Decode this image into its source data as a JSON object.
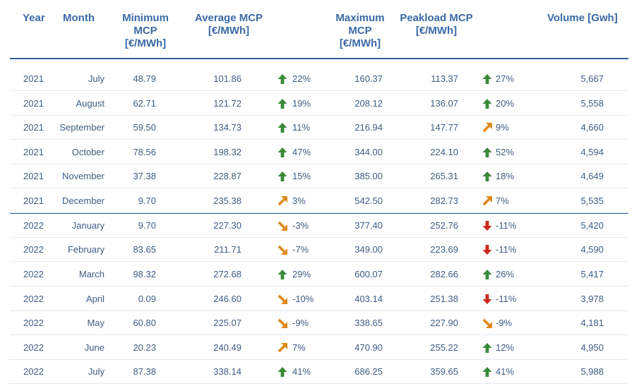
{
  "header": {
    "year": "Year",
    "month": "Month",
    "min_mcp": [
      "Minimum",
      "MCP",
      "[€/MWh]"
    ],
    "avg_mcp": [
      "Average MCP",
      "[€/MWh]"
    ],
    "max_mcp": [
      "Maximum",
      "MCP",
      "[€/MWh]"
    ],
    "peak_mcp": [
      "Peakload MCP",
      "[€/MWh]"
    ],
    "volume": "Volume [Gwh]"
  },
  "colors": {
    "header_text": "#3a6aa6",
    "cell_text": "#3d5c84",
    "rule": "#2f5f99",
    "up": "#3a8a3a",
    "up_right": "#e08a1e",
    "down_right": "#e08a1e",
    "down": "#cc2a1e"
  },
  "rows": [
    {
      "year": "2021",
      "month": "July",
      "min": "48.79",
      "avg": "101.86",
      "avg_icon": "up-arrow-icon",
      "avg_pct": "22%",
      "max": "160.37",
      "peak": "113.37",
      "peak_icon": "up-arrow-icon",
      "peak_pct": "27%",
      "vol": "5,667"
    },
    {
      "year": "2021",
      "month": "August",
      "min": "62.71",
      "avg": "121.72",
      "avg_icon": "up-arrow-icon",
      "avg_pct": "19%",
      "max": "208.12",
      "peak": "136.07",
      "peak_icon": "up-arrow-icon",
      "peak_pct": "20%",
      "vol": "5,558"
    },
    {
      "year": "2021",
      "month": "September",
      "min": "59.50",
      "avg": "134.73",
      "avg_icon": "up-arrow-icon",
      "avg_pct": "11%",
      "max": "216.94",
      "peak": "147.77",
      "peak_icon": "up-right-arrow-icon",
      "peak_pct": "9%",
      "vol": "4,660"
    },
    {
      "year": "2021",
      "month": "October",
      "min": "78.56",
      "avg": "198.32",
      "avg_icon": "up-arrow-icon",
      "avg_pct": "47%",
      "max": "344.00",
      "peak": "224.10",
      "peak_icon": "up-arrow-icon",
      "peak_pct": "52%",
      "vol": "4,594"
    },
    {
      "year": "2021",
      "month": "November",
      "min": "37.38",
      "avg": "228.87",
      "avg_icon": "up-arrow-icon",
      "avg_pct": "15%",
      "max": "385.00",
      "peak": "265.31",
      "peak_icon": "up-arrow-icon",
      "peak_pct": "18%",
      "vol": "4,649"
    },
    {
      "year": "2021",
      "month": "December",
      "min": "9.70",
      "avg": "235.38",
      "avg_icon": "up-right-arrow-icon",
      "avg_pct": "3%",
      "max": "542.50",
      "peak": "282.73",
      "peak_icon": "up-right-arrow-icon",
      "peak_pct": "7%",
      "vol": "5,535"
    },
    {
      "year": "2022",
      "month": "January",
      "min": "9.70",
      "avg": "227.30",
      "avg_icon": "down-right-arrow-icon",
      "avg_pct": "-3%",
      "max": "377.40",
      "peak": "252.76",
      "peak_icon": "down-arrow-icon",
      "peak_pct": "-11%",
      "vol": "5,420"
    },
    {
      "year": "2022",
      "month": "February",
      "min": "83.65",
      "avg": "211.71",
      "avg_icon": "down-right-arrow-icon",
      "avg_pct": "-7%",
      "max": "349.00",
      "peak": "223.69",
      "peak_icon": "down-arrow-icon",
      "peak_pct": "-11%",
      "vol": "4,590"
    },
    {
      "year": "2022",
      "month": "March",
      "min": "98.32",
      "avg": "272.68",
      "avg_icon": "up-arrow-icon",
      "avg_pct": "29%",
      "max": "600.07",
      "peak": "282.66",
      "peak_icon": "up-arrow-icon",
      "peak_pct": "26%",
      "vol": "5,417"
    },
    {
      "year": "2022",
      "month": "April",
      "min": "0.09",
      "avg": "246.60",
      "avg_icon": "down-right-arrow-icon",
      "avg_pct": "-10%",
      "max": "403.14",
      "peak": "251.38",
      "peak_icon": "down-arrow-icon",
      "peak_pct": "-11%",
      "vol": "3,978"
    },
    {
      "year": "2022",
      "month": "May",
      "min": "60.80",
      "avg": "225.07",
      "avg_icon": "down-right-arrow-icon",
      "avg_pct": "-9%",
      "max": "338.65",
      "peak": "227.90",
      "peak_icon": "down-right-arrow-icon",
      "peak_pct": "-9%",
      "vol": "4,181"
    },
    {
      "year": "2022",
      "month": "June",
      "min": "20.23",
      "avg": "240.49",
      "avg_icon": "up-right-arrow-icon",
      "avg_pct": "7%",
      "max": "470.90",
      "peak": "255.22",
      "peak_icon": "up-arrow-icon",
      "peak_pct": "12%",
      "vol": "4,950"
    },
    {
      "year": "2022",
      "month": "July",
      "min": "87.38",
      "avg": "338.14",
      "avg_icon": "up-arrow-icon",
      "avg_pct": "41%",
      "max": "686.25",
      "peak": "359.65",
      "peak_icon": "up-arrow-icon",
      "peak_pct": "41%",
      "vol": "5,988"
    }
  ]
}
